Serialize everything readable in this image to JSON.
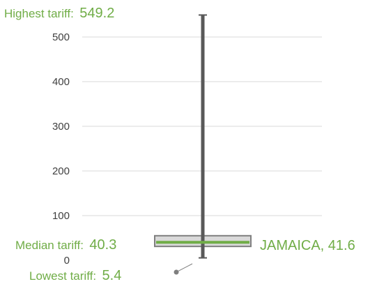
{
  "chart_data": {
    "type": "box",
    "y_ticks": [
      0,
      100,
      200,
      300,
      400,
      500
    ],
    "ylim": [
      0,
      560
    ],
    "grid": true,
    "box": {
      "q1": 31,
      "q3": 55
    },
    "max": 549.2,
    "median": 40.3,
    "min": 5.4,
    "highlight": {
      "label": "JAMAICA",
      "value": 41.6
    },
    "annotations": {
      "highest_prefix": "Highest tariff:",
      "highest_value": "549.2",
      "median_prefix": "Median tariff:",
      "median_value": "40.3",
      "lowest_prefix": "Lowest tariff:",
      "lowest_value": "5.4",
      "highlight_text": "JAMAICA, 41.6"
    },
    "colors": {
      "whisker": "#595959",
      "box_fill": "#d9d9d9",
      "box_stroke": "#7f7f7f",
      "median_line": "#70ad47",
      "highlight_text": "#70ad47",
      "label_prefix": "#70ad47",
      "grid": "#d9d9d9"
    }
  }
}
